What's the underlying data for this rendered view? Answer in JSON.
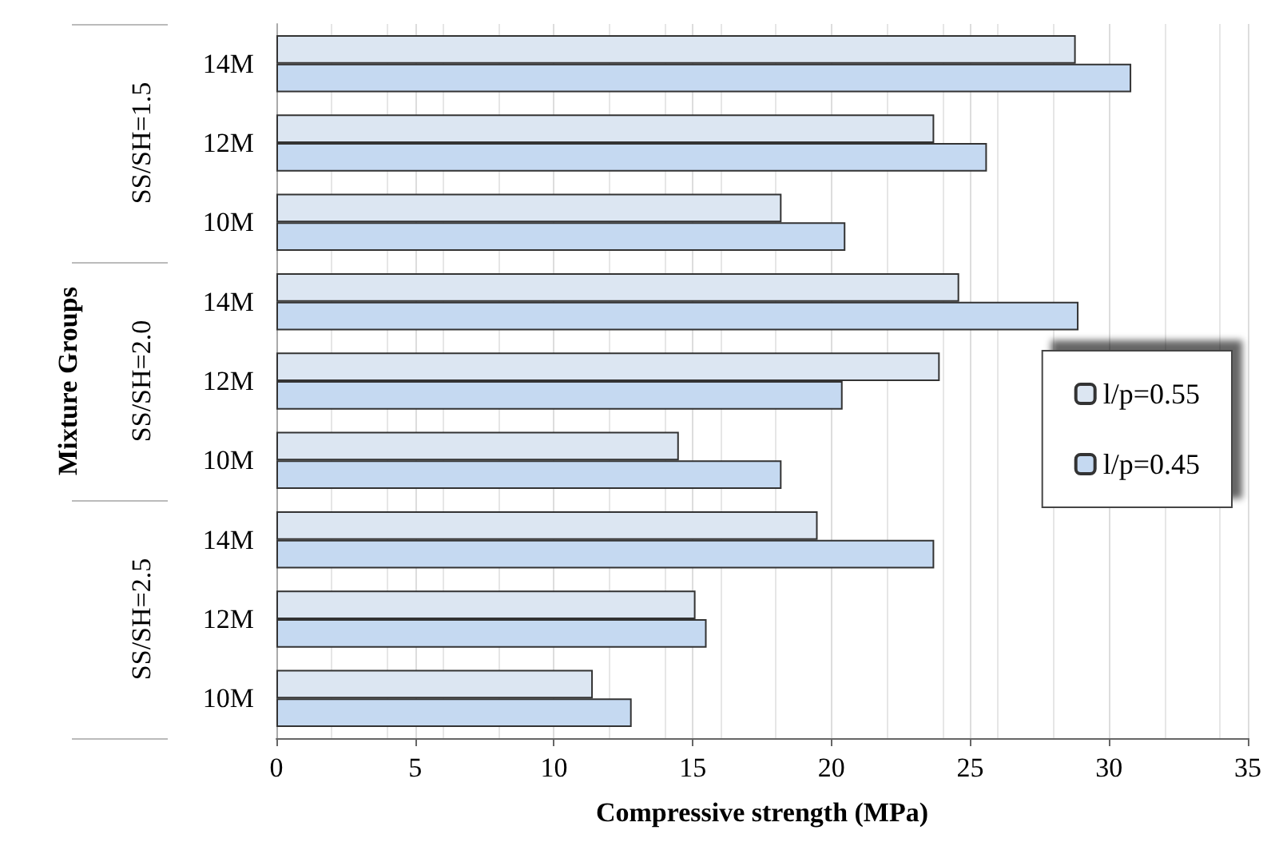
{
  "chart_data": {
    "type": "bar",
    "orientation": "horizontal",
    "xlabel": "Compressive strength (MPa)",
    "ylabel": "Mixture Groups",
    "categories": [
      "14M",
      "12M",
      "10M",
      "14M",
      "12M",
      "10M",
      "14M",
      "12M",
      "10M"
    ],
    "annotations": [
      "SS/SH=1.5",
      "SS/SH=2.0",
      "SS/SH=2.5"
    ],
    "series": [
      {
        "name": "l/p=0.55",
        "color": "#dce6f2",
        "values": [
          28.8,
          23.7,
          18.2,
          24.6,
          23.9,
          14.5,
          19.5,
          15.1,
          11.4
        ]
      },
      {
        "name": "l/p=0.45",
        "color": "#c5d9f1",
        "values": [
          30.8,
          25.6,
          20.5,
          28.9,
          20.4,
          18.2,
          23.7,
          15.5,
          12.8
        ]
      }
    ],
    "xlim": [
      0,
      35
    ],
    "xticks": [
      0,
      5,
      10,
      15,
      20,
      25,
      30,
      35
    ],
    "grid": "x",
    "legend": "right"
  }
}
